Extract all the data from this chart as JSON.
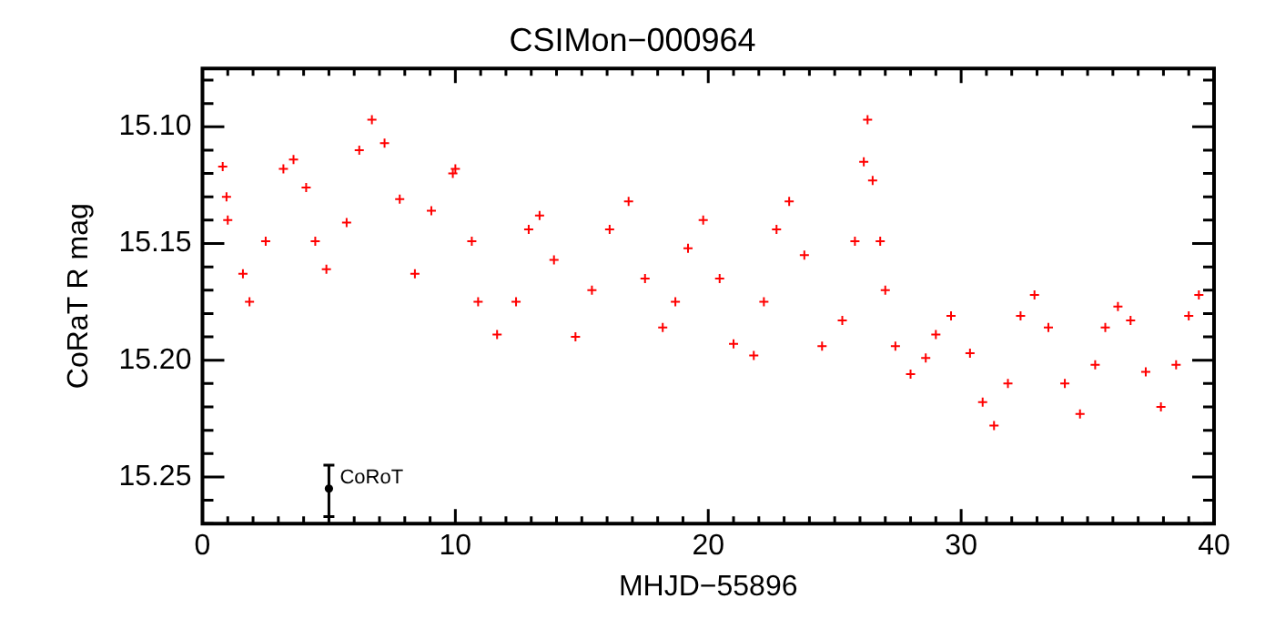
{
  "chart_data": {
    "type": "scatter",
    "title": "CSIMon−000964",
    "xlabel": "MHJD−55896",
    "ylabel": "CoRaT R mag",
    "xlim": [
      0,
      40
    ],
    "xticks": [
      0,
      {
        "value": 1,
        "label": null
      },
      {
        "value": 2,
        "label": null
      },
      {
        "value": 3,
        "label": null
      },
      {
        "value": 4,
        "label": null
      },
      {
        "value": 5,
        "label": null
      },
      {
        "value": 6,
        "label": null
      },
      {
        "value": 7,
        "label": null
      },
      {
        "value": 8,
        "label": null
      },
      {
        "value": 9,
        "label": null
      },
      10,
      {
        "value": 11,
        "label": null
      },
      {
        "value": 12,
        "label": null
      },
      {
        "value": 13,
        "label": null
      },
      {
        "value": 14,
        "label": null
      },
      {
        "value": 15,
        "label": null
      },
      {
        "value": 16,
        "label": null
      },
      {
        "value": 17,
        "label": null
      },
      {
        "value": 18,
        "label": null
      },
      {
        "value": 19,
        "label": null
      },
      20,
      {
        "value": 21,
        "label": null
      },
      {
        "value": 22,
        "label": null
      },
      {
        "value": 23,
        "label": null
      },
      {
        "value": 24,
        "label": null
      },
      {
        "value": 25,
        "label": null
      },
      {
        "value": 26,
        "label": null
      },
      {
        "value": 27,
        "label": null
      },
      {
        "value": 28,
        "label": null
      },
      {
        "value": 29,
        "label": null
      },
      30,
      {
        "value": 31,
        "label": null
      },
      {
        "value": 32,
        "label": null
      },
      {
        "value": 33,
        "label": null
      },
      {
        "value": 34,
        "label": null
      },
      {
        "value": 35,
        "label": null
      },
      {
        "value": 36,
        "label": null
      },
      {
        "value": 37,
        "label": null
      },
      {
        "value": 38,
        "label": null
      },
      {
        "value": 39,
        "label": null
      },
      40
    ],
    "ylim": [
      15.27,
      15.075
    ],
    "yticks": [
      {
        "value": 15.08,
        "label": null
      },
      {
        "value": 15.09,
        "label": null
      },
      {
        "value": 15.1,
        "label": "15.10"
      },
      {
        "value": 15.11,
        "label": null
      },
      {
        "value": 15.12,
        "label": null
      },
      {
        "value": 15.13,
        "label": null
      },
      {
        "value": 15.14,
        "label": null
      },
      {
        "value": 15.15,
        "label": "15.15"
      },
      {
        "value": 15.16,
        "label": null
      },
      {
        "value": 15.17,
        "label": null
      },
      {
        "value": 15.18,
        "label": null
      },
      {
        "value": 15.19,
        "label": null
      },
      {
        "value": 15.2,
        "label": "15.20"
      },
      {
        "value": 15.21,
        "label": null
      },
      {
        "value": 15.22,
        "label": null
      },
      {
        "value": 15.23,
        "label": null
      },
      {
        "value": 15.24,
        "label": null
      },
      {
        "value": 15.25,
        "label": "15.25"
      },
      {
        "value": 15.26,
        "label": null
      },
      {
        "value": 15.27,
        "label": null
      }
    ],
    "annotations": [
      {
        "text": "CoRoT",
        "x": 5,
        "y": 15.255
      }
    ],
    "series": [
      {
        "color": "#ff0000",
        "marker": "cross",
        "x": [
          0.8,
          0.95,
          1.0,
          1.6,
          1.86,
          2.5,
          3.2,
          3.6,
          4.1,
          4.46,
          4.9,
          5.7,
          6.2,
          6.7,
          7.2,
          7.8,
          8.4,
          9.05,
          9.9,
          10.0,
          10.65,
          10.9,
          11.65,
          12.4,
          12.9,
          13.33,
          13.9,
          14.75,
          15.4,
          16.1,
          16.85,
          17.5,
          18.2,
          18.7,
          19.2,
          19.8,
          20.45,
          21.0,
          21.8,
          22.2,
          22.7,
          23.2,
          23.8,
          24.5,
          25.3,
          25.8,
          26.15,
          26.3,
          26.5,
          26.8,
          27.0,
          27.4,
          28.0,
          28.6,
          29.0,
          29.6,
          30.35,
          30.85,
          31.3,
          31.85,
          32.35,
          32.9,
          33.45,
          34.1,
          34.7,
          35.3,
          35.7,
          36.2,
          36.7,
          37.3,
          37.9,
          38.5,
          39.0,
          39.4
        ],
        "values": [
          15.117,
          15.13,
          15.14,
          15.163,
          15.175,
          15.149,
          15.118,
          15.114,
          15.126,
          15.149,
          15.161,
          15.141,
          15.11,
          15.097,
          15.107,
          15.131,
          15.163,
          15.136,
          15.12,
          15.118,
          15.149,
          15.175,
          15.189,
          15.175,
          15.144,
          15.138,
          15.157,
          15.19,
          15.17,
          15.144,
          15.132,
          15.165,
          15.186,
          15.175,
          15.152,
          15.14,
          15.165,
          15.193,
          15.198,
          15.175,
          15.144,
          15.132,
          15.155,
          15.194,
          15.183,
          15.149,
          15.115,
          15.097,
          15.123,
          15.149,
          15.17,
          15.194,
          15.206,
          15.199,
          15.189,
          15.181,
          15.197,
          15.218,
          15.228,
          15.21,
          15.181,
          15.172,
          15.186,
          15.21,
          15.223,
          15.202,
          15.186,
          15.177,
          15.183,
          15.205,
          15.22,
          15.202,
          15.181,
          15.172
        ]
      },
      {
        "color": "#000000",
        "marker": "circle",
        "x": [
          5
        ],
        "values": [
          15.255
        ],
        "errors": [
          [
            15.245,
            15.267
          ]
        ]
      }
    ]
  }
}
